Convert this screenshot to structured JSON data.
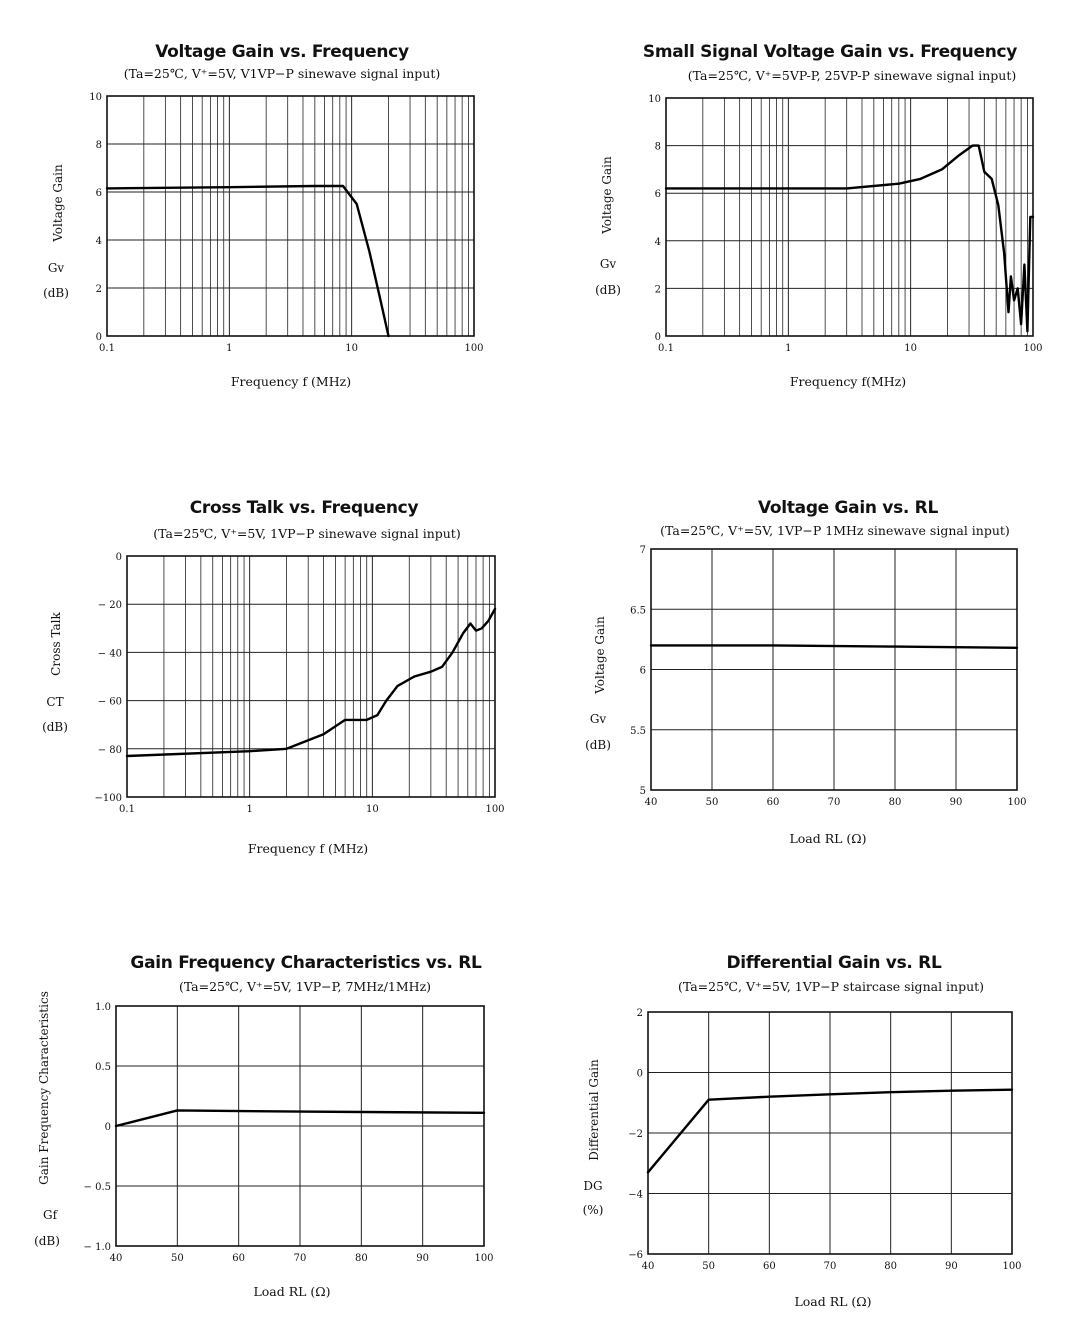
{
  "chart_data": [
    {
      "id": "c1",
      "type": "line",
      "title": "Voltage Gain vs. Frequency",
      "subtitle": "(Ta=25℃, V⁺=5V, V1VP−P sinewave signal input)",
      "ylabel_lines": [
        "Voltage Gain",
        "Gv",
        "(dB)"
      ],
      "xlabel": "Frequency f (MHz)",
      "xscale": "log",
      "xlim": [
        0.1,
        100
      ],
      "ylim": [
        0,
        10
      ],
      "xticks": [
        0.1,
        1,
        10,
        100
      ],
      "xtick_labels": [
        "0.1",
        "1",
        "10",
        "100"
      ],
      "yticks": [
        0,
        2,
        4,
        6,
        8,
        10
      ],
      "ytick_labels": [
        "0",
        "2",
        "4",
        "6",
        "8",
        "10"
      ],
      "grid": true,
      "series": [
        {
          "x": [
            0.1,
            1,
            5,
            8.5,
            11,
            14,
            17,
            20
          ],
          "y": [
            6.15,
            6.2,
            6.25,
            6.25,
            5.5,
            3.5,
            1.6,
            0.0
          ]
        }
      ]
    },
    {
      "id": "c2",
      "type": "line",
      "title": "Small Signal Voltage Gain vs. Frequency",
      "subtitle": "(Ta=25℃, V⁺=5VP-P, 25VP-P sinewave signal input)",
      "ylabel_lines": [
        "Voltage Gain",
        "Gv",
        "(dB)"
      ],
      "xlabel": "Frequency f(MHz)",
      "xscale": "log",
      "xlim": [
        0.1,
        100
      ],
      "ylim": [
        0,
        10
      ],
      "xticks": [
        0.1,
        1,
        10,
        100
      ],
      "xtick_labels": [
        "0.1",
        "1",
        "10",
        "100"
      ],
      "yticks": [
        0,
        2,
        4,
        6,
        8,
        10
      ],
      "ytick_labels": [
        "0",
        "2",
        "4",
        "6",
        "8",
        "10"
      ],
      "grid": true,
      "series": [
        {
          "x": [
            0.1,
            1,
            3,
            8,
            12,
            18,
            25,
            32,
            36,
            40,
            46,
            52,
            58,
            63,
            66,
            70,
            75,
            80,
            85,
            90,
            95,
            100
          ],
          "y": [
            6.2,
            6.2,
            6.2,
            6.4,
            6.6,
            7.0,
            7.6,
            8.0,
            8.0,
            6.9,
            6.6,
            5.5,
            3.5,
            1.0,
            2.5,
            1.5,
            2.0,
            0.5,
            3.0,
            0.2,
            5.0,
            5.0
          ]
        }
      ]
    },
    {
      "id": "c3",
      "type": "line",
      "title": "Cross Talk vs. Frequency",
      "subtitle": "(Ta=25℃, V⁺=5V, 1VP−P  sinewave signal input)",
      "ylabel_lines": [
        "Cross Talk",
        "CT",
        "(dB)"
      ],
      "xlabel": "Frequency f (MHz)",
      "xscale": "log",
      "xlim": [
        0.1,
        100
      ],
      "ylim": [
        -100,
        0
      ],
      "xticks": [
        0.1,
        1,
        10,
        100
      ],
      "xtick_labels": [
        "0.1",
        "1",
        "10",
        "100"
      ],
      "yticks": [
        0,
        -20,
        -40,
        -60,
        -80,
        -100
      ],
      "ytick_labels": [
        "0",
        "− 20",
        "− 40",
        "− 60",
        "− 80",
        "−100"
      ],
      "grid": true,
      "series": [
        {
          "x": [
            0.1,
            1,
            2,
            4,
            6,
            9,
            11,
            13,
            16,
            22,
            30,
            37,
            45,
            55,
            63,
            70,
            78,
            88,
            100
          ],
          "y": [
            -83,
            -81,
            -80,
            -74,
            -68,
            -68,
            -66,
            -60,
            -54,
            -50,
            -48,
            -46,
            -40,
            -32,
            -28,
            -31,
            -30,
            -27,
            -22
          ]
        }
      ]
    },
    {
      "id": "c4",
      "type": "line",
      "title": "Voltage Gain vs. RL",
      "subtitle": "(Ta=25℃, V⁺=5V, 1VP−P 1MHz sinewave signal input)",
      "ylabel_lines": [
        "Voltage Gain",
        "Gv",
        "(dB)"
      ],
      "xlabel": "Load RL (Ω)",
      "xscale": "linear",
      "xlim": [
        40,
        100
      ],
      "ylim": [
        5,
        7
      ],
      "xticks": [
        40,
        50,
        60,
        70,
        80,
        90,
        100
      ],
      "xtick_labels": [
        "40",
        "50",
        "60",
        "70",
        "80",
        "90",
        "100"
      ],
      "yticks": [
        5,
        5.5,
        6,
        6.5,
        7
      ],
      "ytick_labels": [
        "5",
        "5.5",
        "6",
        "6.5",
        "7"
      ],
      "grid": true,
      "series": [
        {
          "x": [
            40,
            60,
            80,
            100
          ],
          "y": [
            6.2,
            6.2,
            6.19,
            6.18
          ]
        }
      ]
    },
    {
      "id": "c5",
      "type": "line",
      "title": "Gain Frequency Characteristics vs. RL",
      "subtitle": "(Ta=25℃, V⁺=5V, 1VP−P, 7MHz/1MHz)",
      "ylabel_lines": [
        "Gain Frequency Characteristics",
        "Gf",
        "(dB)"
      ],
      "xlabel": "Load RL (Ω)",
      "xscale": "linear",
      "xlim": [
        40,
        100
      ],
      "ylim": [
        -1.0,
        1.0
      ],
      "xticks": [
        40,
        50,
        60,
        70,
        80,
        90,
        100
      ],
      "xtick_labels": [
        "40",
        "50",
        "60",
        "70",
        "80",
        "90",
        "100"
      ],
      "yticks": [
        1.0,
        0.5,
        0,
        -0.5,
        -1.0
      ],
      "ytick_labels": [
        "1.0",
        "0.5",
        "0",
        "− 0.5",
        "− 1.0"
      ],
      "grid": true,
      "series": [
        {
          "x": [
            40,
            50,
            70,
            100
          ],
          "y": [
            0.0,
            0.13,
            0.12,
            0.11
          ]
        }
      ]
    },
    {
      "id": "c6",
      "type": "line",
      "title": "Differential Gain vs. RL",
      "subtitle": "(Ta=25℃, V⁺=5V, 1VP−P staircase signal input)",
      "ylabel_lines": [
        "Differential Gain",
        "DG",
        "(%)"
      ],
      "xlabel": "Load RL (Ω)",
      "xscale": "linear",
      "xlim": [
        40,
        100
      ],
      "ylim": [
        -6,
        2
      ],
      "xticks": [
        40,
        50,
        60,
        70,
        80,
        90,
        100
      ],
      "xtick_labels": [
        "40",
        "50",
        "60",
        "70",
        "80",
        "90",
        "100"
      ],
      "yticks": [
        2,
        0,
        -2,
        -4,
        -6
      ],
      "ytick_labels": [
        "2",
        "0",
        "−2",
        "−4",
        "−6"
      ],
      "grid": true,
      "series": [
        {
          "x": [
            40,
            50,
            60,
            70,
            80,
            90,
            100
          ],
          "y": [
            -3.3,
            -0.9,
            -0.8,
            -0.72,
            -0.65,
            -0.6,
            -0.57
          ]
        }
      ]
    }
  ]
}
